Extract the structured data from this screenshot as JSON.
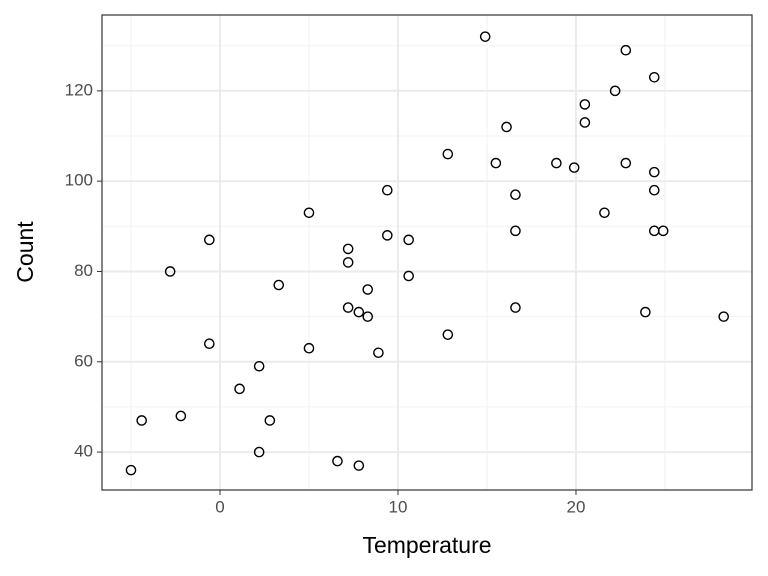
{
  "chart_data": {
    "type": "scatter",
    "xlabel": "Temperature",
    "ylabel": "Count",
    "x": [
      -5.0,
      -4.4,
      -2.2,
      -2.8,
      -0.6,
      -0.6,
      1.1,
      2.2,
      2.8,
      2.2,
      3.3,
      5.0,
      5.0,
      6.6,
      7.8,
      7.2,
      7.2,
      7.2,
      7.8,
      8.3,
      8.3,
      8.9,
      9.4,
      9.4,
      10.6,
      10.6,
      12.8,
      12.8,
      14.9,
      15.5,
      16.1,
      16.6,
      16.6,
      16.6,
      18.9,
      19.9,
      20.5,
      20.5,
      21.6,
      22.2,
      22.8,
      22.8,
      23.9,
      24.4,
      24.4,
      24.4,
      24.4,
      24.9,
      28.3
    ],
    "series": [
      {
        "name": "Count",
        "color": "#000000",
        "values": [
          36,
          47,
          48,
          80,
          87,
          64,
          54,
          59,
          47,
          40,
          77,
          93,
          63,
          38,
          37,
          85,
          82,
          72,
          71,
          76,
          70,
          62,
          98,
          88,
          87,
          79,
          106,
          66,
          132,
          104,
          112,
          97,
          89,
          72,
          104,
          103,
          117,
          113,
          93,
          120,
          129,
          104,
          71,
          123,
          102,
          98,
          89,
          89,
          70
        ]
      }
    ],
    "xlim": [
      -6.63,
      29.89
    ],
    "ylim": [
      31.6,
      136.8
    ],
    "xticks": [
      0,
      10,
      20
    ],
    "yticks": [
      40,
      60,
      80,
      100,
      120
    ],
    "xminor": [
      -5,
      5,
      15,
      25
    ],
    "yminor": [
      50,
      70,
      90,
      110,
      130
    ],
    "grid": true
  }
}
